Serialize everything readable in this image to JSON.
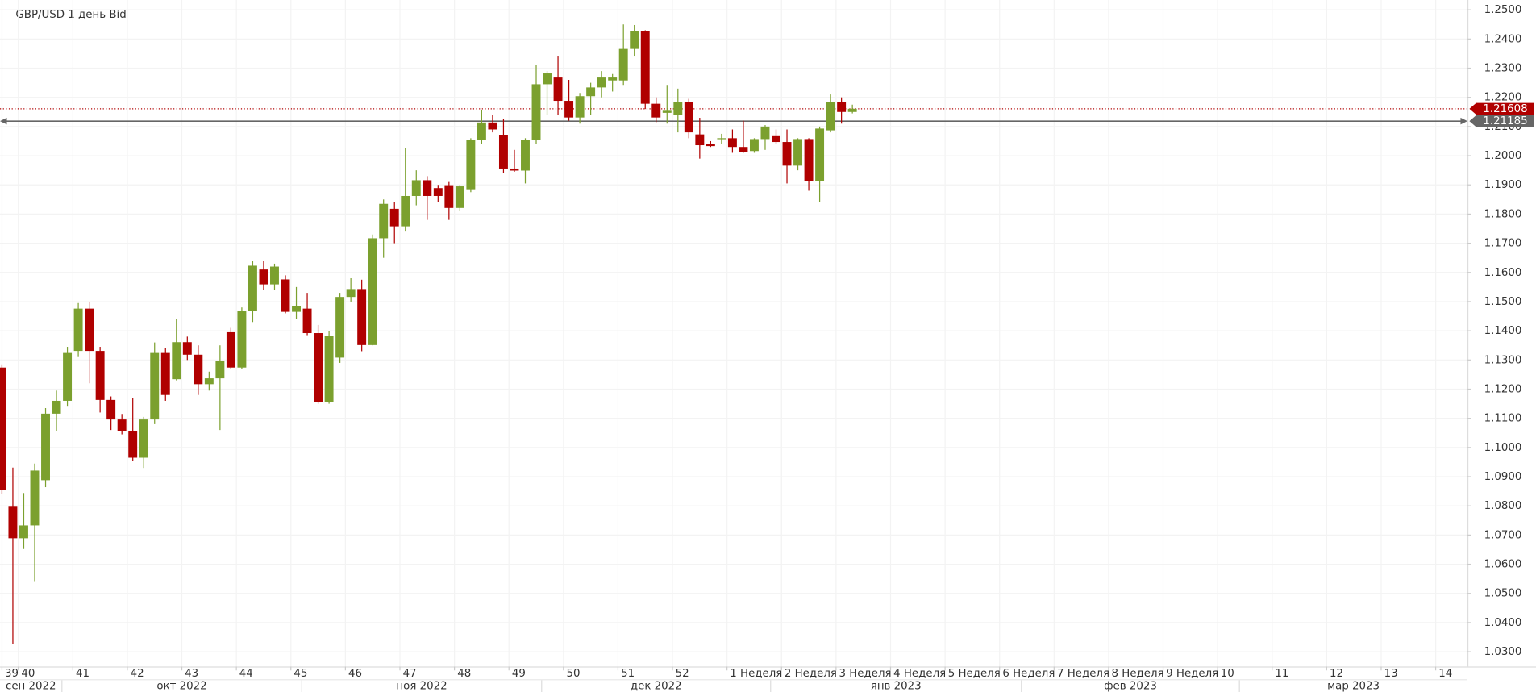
{
  "chart_data": {
    "type": "candlestick",
    "title": "GBP/USD  1 день Bid",
    "up_color": "#7ba02e",
    "down_color": "#b00000",
    "open": [
      1.1274,
      1.0797,
      1.0689,
      1.0733,
      1.0888,
      1.1116,
      1.116,
      1.1331,
      1.1476,
      1.1331,
      1.1163,
      1.1096,
      1.1056,
      1.0965,
      1.1096,
      1.1324,
      1.1234,
      1.1361,
      1.1318,
      1.1217,
      1.1237,
      1.1395,
      1.1274,
      1.1469,
      1.161,
      1.1559,
      1.1576,
      1.1465,
      1.1476,
      1.1392,
      1.1156,
      1.1308,
      1.1516,
      1.1543,
      1.1351,
      1.1717,
      1.1818,
      1.1758,
      1.1862,
      1.1916,
      1.1889,
      1.1899,
      1.1821,
      1.1885,
      1.2053,
      1.2114,
      1.207,
      1.1956,
      1.1949,
      1.2053,
      1.2245,
      1.2268,
      1.2188,
      1.2131,
      1.2204,
      1.2234,
      1.2258,
      1.2258,
      1.2366,
      1.2426,
      1.2178,
      1.2147,
      1.214,
      1.2184,
      1.2073,
      1.204,
      1.2057,
      1.206,
      1.203,
      1.2016,
      1.2057,
      1.2067,
      1.2047,
      1.1966,
      1.2057,
      1.1912,
      1.2087,
      1.2184,
      1.215
    ],
    "high": [
      1.1285,
      1.0931,
      1.0844,
      1.0945,
      1.1135,
      1.1195,
      1.1345,
      1.1495,
      1.15,
      1.1345,
      1.1175,
      1.1115,
      1.117,
      1.1105,
      1.136,
      1.134,
      1.144,
      1.138,
      1.135,
      1.126,
      1.135,
      1.141,
      1.148,
      1.164,
      1.164,
      1.163,
      1.159,
      1.155,
      1.153,
      1.142,
      1.14,
      1.153,
      1.158,
      1.1575,
      1.173,
      1.185,
      1.184,
      1.2025,
      1.195,
      1.193,
      1.19,
      1.191,
      1.19,
      1.206,
      1.2155,
      1.214,
      1.2125,
      1.202,
      1.206,
      1.231,
      1.229,
      1.234,
      1.226,
      1.2215,
      1.225,
      1.229,
      1.228,
      1.245,
      1.2448,
      1.243,
      1.22,
      1.224,
      1.223,
      1.2195,
      1.213,
      1.205,
      1.2075,
      1.209,
      1.212,
      1.206,
      1.2105,
      1.209,
      1.209,
      1.206,
      1.206,
      1.21,
      1.221,
      1.22,
      1.2175
    ],
    "low": [
      1.084,
      1.0327,
      1.0652,
      1.0542,
      1.0864,
      1.1055,
      1.114,
      1.131,
      1.122,
      1.112,
      1.106,
      1.1045,
      1.0955,
      1.093,
      1.108,
      1.116,
      1.123,
      1.13,
      1.118,
      1.1195,
      1.106,
      1.127,
      1.127,
      1.143,
      1.154,
      1.154,
      1.146,
      1.144,
      1.1385,
      1.115,
      1.115,
      1.129,
      1.15,
      1.133,
      1.135,
      1.165,
      1.17,
      1.174,
      1.183,
      1.178,
      1.184,
      1.178,
      1.181,
      1.1875,
      1.204,
      1.208,
      1.194,
      1.1945,
      1.1905,
      1.204,
      1.214,
      1.214,
      1.212,
      1.211,
      1.214,
      1.22,
      1.222,
      1.224,
      1.234,
      1.216,
      1.2115,
      1.211,
      1.208,
      1.206,
      1.199,
      1.203,
      1.204,
      1.201,
      1.201,
      1.201,
      1.202,
      1.204,
      1.1905,
      1.195,
      1.188,
      1.184,
      1.208,
      1.211,
      1.2145
    ],
    "close": [
      1.0854,
      1.0689,
      1.0733,
      1.0921,
      1.1116,
      1.116,
      1.1324,
      1.1476,
      1.1331,
      1.1163,
      1.1096,
      1.1056,
      1.0965,
      1.1096,
      1.1324,
      1.118,
      1.1361,
      1.1318,
      1.1217,
      1.1237,
      1.1298,
      1.1274,
      1.1469,
      1.1623,
      1.1559,
      1.162,
      1.1465,
      1.1486,
      1.1392,
      1.1156,
      1.1382,
      1.1516,
      1.1543,
      1.1351,
      1.1717,
      1.1835,
      1.1758,
      1.1862,
      1.1916,
      1.1862,
      1.1862,
      1.1821,
      1.1895,
      1.2053,
      1.2114,
      1.209,
      1.1956,
      1.1949,
      1.2053,
      1.2245,
      1.2282,
      1.2188,
      1.2131,
      1.2204,
      1.2234,
      1.2268,
      1.2268,
      1.2366,
      1.2426,
      1.2178,
      1.2131,
      1.2154,
      1.2184,
      1.208,
      1.2036,
      1.2033,
      1.206,
      1.203,
      1.2013,
      1.2057,
      1.21,
      1.2047,
      1.1966,
      1.2057,
      1.1912,
      1.2093,
      1.2184,
      1.215,
      1.2161
    ],
    "ylim": [
      1.02494,
      1.25336
    ],
    "yticks": [
      {
        "value": 1.03,
        "label": "1.0300"
      },
      {
        "value": 1.04,
        "label": "1.0400"
      },
      {
        "value": 1.05,
        "label": "1.0500"
      },
      {
        "value": 1.06,
        "label": "1.0600"
      },
      {
        "value": 1.07,
        "label": "1.0700"
      },
      {
        "value": 1.08,
        "label": "1.0800"
      },
      {
        "value": 1.09,
        "label": "1.0900"
      },
      {
        "value": 1.1,
        "label": "1.1000"
      },
      {
        "value": 1.11,
        "label": "1.1100"
      },
      {
        "value": 1.12,
        "label": "1.1200"
      },
      {
        "value": 1.13,
        "label": "1.1300"
      },
      {
        "value": 1.14,
        "label": "1.1400"
      },
      {
        "value": 1.15,
        "label": "1.1500"
      },
      {
        "value": 1.16,
        "label": "1.1600"
      },
      {
        "value": 1.17,
        "label": "1.1700"
      },
      {
        "value": 1.18,
        "label": "1.1800"
      },
      {
        "value": 1.19,
        "label": "1.1900"
      },
      {
        "value": 1.2,
        "label": "1.2000"
      },
      {
        "value": 1.21,
        "label": "1.2100"
      },
      {
        "value": 1.22,
        "label": "1.2200"
      },
      {
        "value": 1.23,
        "label": "1.2300"
      },
      {
        "value": 1.24,
        "label": "1.2400"
      },
      {
        "value": 1.25,
        "label": "1.2500"
      }
    ],
    "xticks": [
      {
        "value": 0,
        "label": "39"
      },
      {
        "value": 1.5,
        "label": "40"
      },
      {
        "value": 6.5,
        "label": "41"
      },
      {
        "value": 11.5,
        "label": "42"
      },
      {
        "value": 16.5,
        "label": "43"
      },
      {
        "value": 21.5,
        "label": "44"
      },
      {
        "value": 26.5,
        "label": "45"
      },
      {
        "value": 31.5,
        "label": "46"
      },
      {
        "value": 36.5,
        "label": "47"
      },
      {
        "value": 41.5,
        "label": "48"
      },
      {
        "value": 46.5,
        "label": "49"
      },
      {
        "value": 51.5,
        "label": "50"
      },
      {
        "value": 56.5,
        "label": "51"
      },
      {
        "value": 61.5,
        "label": "52"
      },
      {
        "value": 66.5,
        "label": "1 Неделя"
      },
      {
        "value": 71.5,
        "label": "2 Неделя"
      },
      {
        "value": 76.5,
        "label": "3 Неделя"
      },
      {
        "value": 81.5,
        "label": "4 Неделя"
      },
      {
        "value": 86.5,
        "label": "5 Неделя"
      },
      {
        "value": 91.5,
        "label": "6 Неделя"
      },
      {
        "value": 96.5,
        "label": "7 Неделя"
      },
      {
        "value": 101.5,
        "label": "8 Неделя"
      },
      {
        "value": 106.5,
        "label": "9 Неделя"
      },
      {
        "value": 111.5,
        "label": "10"
      },
      {
        "value": 116.5,
        "label": "11"
      },
      {
        "value": 121.5,
        "label": "12"
      },
      {
        "value": 126.5,
        "label": "13"
      },
      {
        "value": 131.5,
        "label": "14"
      }
    ],
    "month_ticks": [
      {
        "value": -0.2,
        "label": "сен 2022"
      },
      {
        "value": 5.5,
        "label": "окт 2022"
      },
      {
        "value": 27.5,
        "label": "ноя 2022"
      },
      {
        "value": 49.5,
        "label": "дек 2022"
      },
      {
        "value": 70.5,
        "label": "янв 2023"
      },
      {
        "value": 93.5,
        "label": "фев 2023"
      },
      {
        "value": 113.5,
        "label": "мар 2023"
      }
    ],
    "price_lines": [
      {
        "value": 1.21608,
        "color": "#b00000",
        "style": "dotted"
      },
      {
        "value": 1.21185,
        "color": "#666666",
        "style": "solid"
      }
    ],
    "grid": true
  }
}
